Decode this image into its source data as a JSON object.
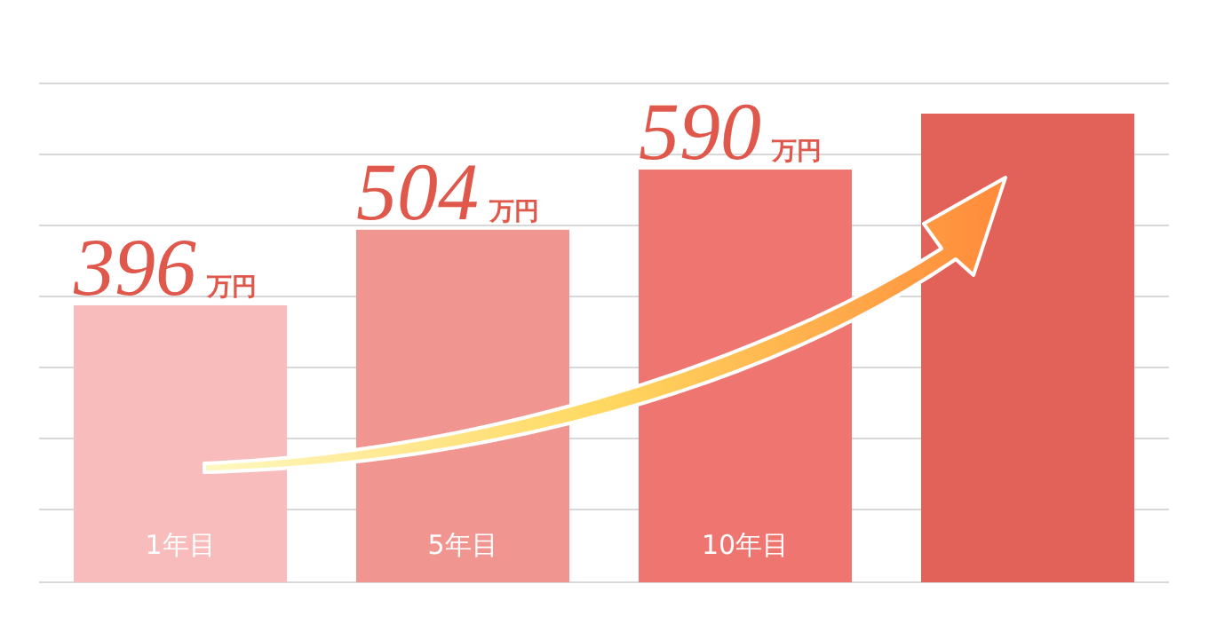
{
  "chart_data": {
    "type": "bar",
    "categories": [
      "1年目",
      "5年目",
      "10年目",
      null
    ],
    "values": [
      396,
      504,
      590,
      670
    ],
    "colors": [
      "#f9bcbc",
      "#f09590",
      "#ef7670",
      "#e2625a"
    ],
    "value_labels": [
      "396万円",
      "504万円",
      "590万円",
      null
    ],
    "grid": true
  }
}
